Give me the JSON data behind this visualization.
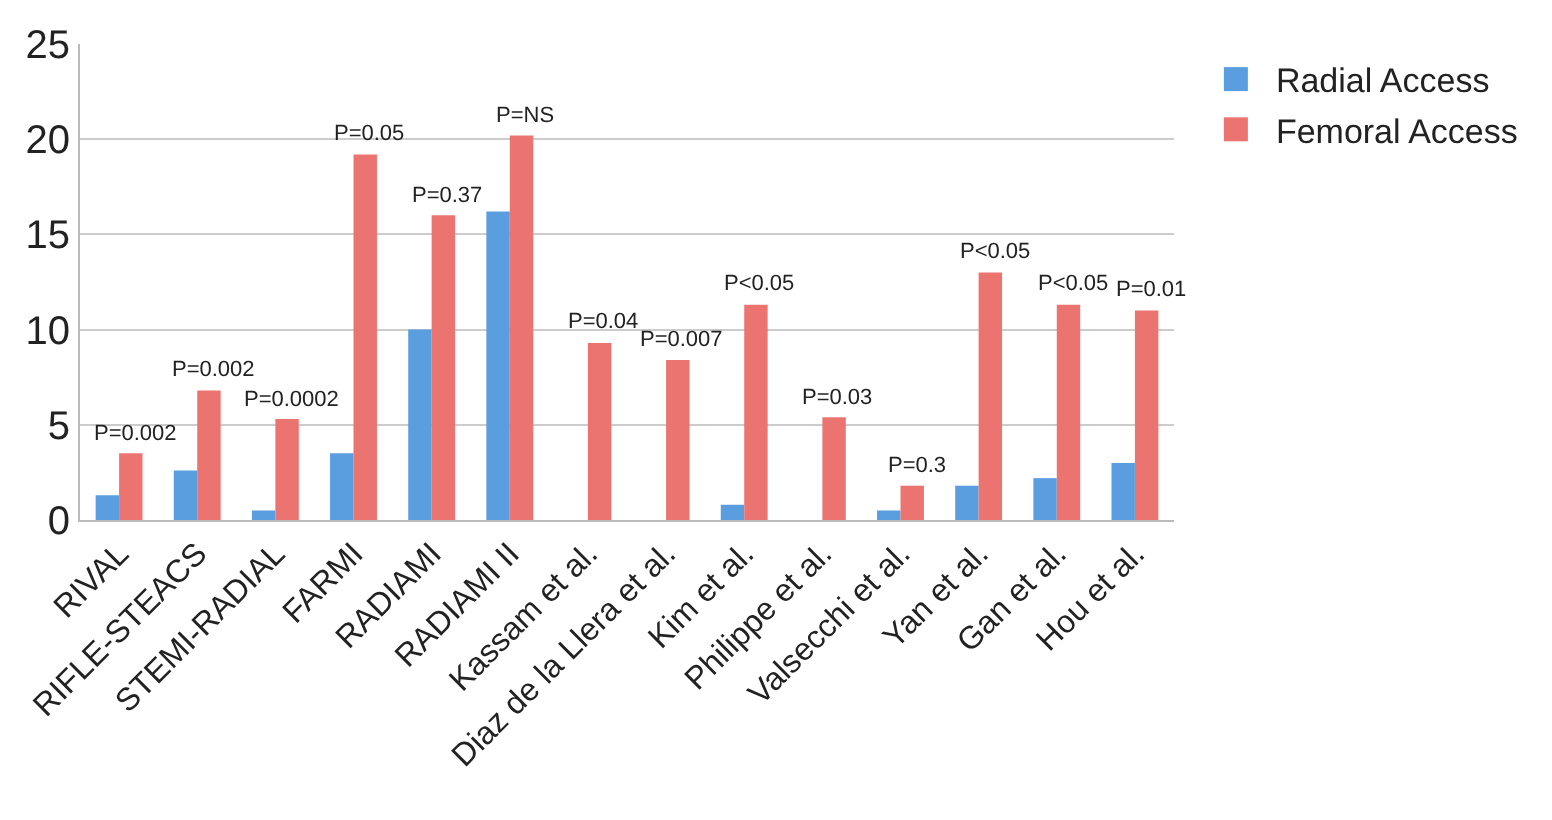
{
  "chart_data": {
    "type": "bar",
    "categories": [
      "RIVAL",
      "RIFLE-STEACS",
      "STEMI-RADIAL",
      "FARMI",
      "RADIAMI",
      "RADIAMI II",
      "Kassam et al.",
      "Diaz de la Llera et al.",
      "Kim et al.",
      "Philippe et al.",
      "Valsecchi et al.",
      "Yan et al.",
      "Gan et al.",
      "Hou et al."
    ],
    "series": [
      {
        "name": "Radial Access",
        "color": "#5b9ee0",
        "values": [
          1.3,
          2.6,
          0.5,
          3.5,
          10.0,
          16.2,
          null,
          null,
          0.8,
          null,
          0.5,
          1.8,
          2.2,
          3.0
        ]
      },
      {
        "name": "Femoral Access",
        "color": "#ec7470",
        "values": [
          3.5,
          6.8,
          5.3,
          19.2,
          16.0,
          20.2,
          9.3,
          8.4,
          11.3,
          5.4,
          1.8,
          13.0,
          11.3,
          11.0
        ]
      }
    ],
    "annotations": [
      {
        "text": "P=0.002",
        "x": "RIVAL",
        "y": 3.5
      },
      {
        "text": "P=0.002",
        "x": "RIFLE-STEACS",
        "y": 6.8
      },
      {
        "text": "P=0.0002",
        "x": "STEMI-RADIAL",
        "y": 5.3
      },
      {
        "text": "P=0.05",
        "x": "FARMI",
        "y": 19.2
      },
      {
        "text": "P=0.37",
        "x": "RADIAMI",
        "y": 16.0
      },
      {
        "text": "P=NS",
        "x": "RADIAMI II",
        "y": 20.2
      },
      {
        "text": "P=0.04",
        "x": "Kassam et al.",
        "y": 9.3
      },
      {
        "text": "P=0.007",
        "x": "Diaz de la Llera et al.",
        "y": 8.4
      },
      {
        "text": "P<0.05",
        "x": "Kim et al.",
        "y": 11.3
      },
      {
        "text": "P=0.03",
        "x": "Philippe et al.",
        "y": 5.4
      },
      {
        "text": "P=0.3",
        "x": "Valsecchi et al.",
        "y": 1.8
      },
      {
        "text": "P<0.05",
        "x": "Yan et al.",
        "y": 13.0
      },
      {
        "text": "P<0.05",
        "x": "Gan et al.",
        "y": 11.3
      },
      {
        "text": "P=0.01",
        "x": "Hou et al.",
        "y": 11.0
      }
    ],
    "ylim": [
      0,
      25
    ],
    "yticks": [
      0,
      5,
      10,
      15,
      20,
      25
    ],
    "grid": "y",
    "legend": "top right"
  }
}
